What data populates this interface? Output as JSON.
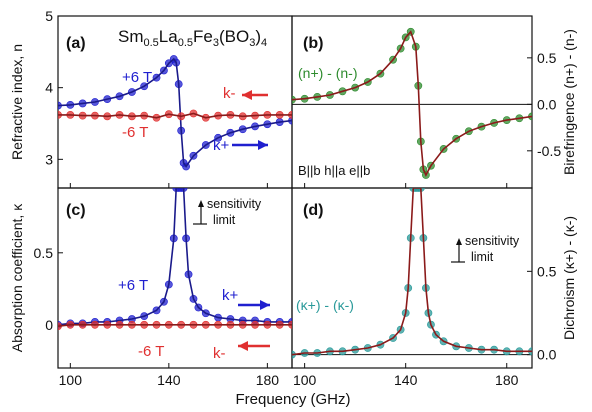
{
  "figure_title": "Sm0.5La0.5Fe3(BO3)4",
  "x_axis_label": "Frequency (GHz)",
  "chart_data": [
    {
      "panel": "(a)",
      "type": "line",
      "ylabel": "Refractive index, n",
      "xlim": [
        95,
        190
      ],
      "ylim": [
        2.6,
        5.0
      ],
      "xticks": [
        100,
        140,
        180
      ],
      "yticks": [
        3,
        4,
        5
      ],
      "annotations": {
        "plus_field": "+6 T",
        "minus_field": "-6 T",
        "k_plus": "k+",
        "k_minus": "k-"
      },
      "series": [
        {
          "name": "+6 T",
          "color": "#1f1fcf",
          "x": [
            95,
            100,
            105,
            110,
            115,
            120,
            125,
            130,
            135,
            138,
            140,
            142,
            143,
            144,
            145,
            146,
            147,
            150,
            155,
            160,
            165,
            170,
            175,
            180,
            185,
            190
          ],
          "y": [
            3.75,
            3.76,
            3.78,
            3.8,
            3.84,
            3.88,
            3.94,
            4.02,
            4.14,
            4.24,
            4.34,
            4.4,
            4.35,
            4.05,
            3.4,
            2.95,
            2.9,
            3.05,
            3.2,
            3.3,
            3.37,
            3.42,
            3.46,
            3.49,
            3.52,
            3.54
          ]
        },
        {
          "name": "-6 T",
          "color": "#e03030",
          "x": [
            95,
            100,
            105,
            110,
            115,
            120,
            125,
            130,
            135,
            140,
            145,
            150,
            155,
            160,
            165,
            170,
            175,
            180,
            185,
            190
          ],
          "y": [
            3.62,
            3.62,
            3.61,
            3.61,
            3.6,
            3.62,
            3.6,
            3.61,
            3.58,
            3.63,
            3.6,
            3.64,
            3.58,
            3.61,
            3.62,
            3.6,
            3.61,
            3.62,
            3.62,
            3.62
          ]
        }
      ]
    },
    {
      "panel": "(b)",
      "type": "line",
      "ylabel": "Birefringence (n+) - (n-)",
      "xlim": [
        95,
        190
      ],
      "ylim": [
        -0.9,
        0.95
      ],
      "xticks": [
        100,
        140,
        180
      ],
      "yticks": [
        -0.5,
        0.0,
        0.5
      ],
      "annotations": {
        "series_label": "(n+) - (n-)",
        "geometry": "B||b  h||a  e||b"
      },
      "series": [
        {
          "name": "(n+) - (n-)",
          "color": "#2e8b2e",
          "x": [
            95,
            100,
            105,
            110,
            115,
            120,
            125,
            130,
            135,
            138,
            140,
            142,
            144,
            145,
            146,
            147,
            148,
            150,
            155,
            160,
            165,
            170,
            175,
            180,
            185,
            190
          ],
          "y": [
            0.05,
            0.06,
            0.08,
            0.1,
            0.14,
            0.18,
            0.24,
            0.33,
            0.48,
            0.6,
            0.72,
            0.78,
            0.62,
            0.2,
            -0.4,
            -0.7,
            -0.76,
            -0.66,
            -0.48,
            -0.37,
            -0.29,
            -0.24,
            -0.2,
            -0.17,
            -0.15,
            -0.13
          ]
        }
      ]
    },
    {
      "panel": "(c)",
      "type": "line",
      "ylabel": "Absorption coefficient, κ",
      "xlim": [
        95,
        190
      ],
      "ylim": [
        -0.3,
        0.95
      ],
      "xticks": [
        100,
        140,
        180
      ],
      "yticks": [
        0.0,
        0.5
      ],
      "annotations": {
        "plus_field": "+6 T",
        "minus_field": "-6 T",
        "k_plus": "k+",
        "k_minus": "k-",
        "sensitivity": "sensitivity limit"
      },
      "series": [
        {
          "name": "+6 T",
          "color": "#1f1fcf",
          "x": [
            95,
            100,
            105,
            110,
            115,
            120,
            125,
            130,
            135,
            138,
            140,
            142,
            143,
            144,
            145,
            146,
            147,
            148,
            150,
            152,
            155,
            160,
            165,
            170,
            175,
            180,
            185,
            190
          ],
          "y": [
            0.0,
            0.01,
            0.01,
            0.02,
            0.02,
            0.03,
            0.04,
            0.06,
            0.1,
            0.16,
            0.28,
            0.6,
            0.95,
            0.95,
            0.95,
            0.95,
            0.6,
            0.35,
            0.18,
            0.12,
            0.08,
            0.05,
            0.04,
            0.03,
            0.03,
            0.02,
            0.02,
            0.02
          ]
        },
        {
          "name": "-6 T",
          "color": "#e03030",
          "x": [
            95,
            100,
            105,
            110,
            115,
            120,
            125,
            130,
            135,
            140,
            145,
            150,
            155,
            160,
            165,
            170,
            175,
            180,
            185,
            190
          ],
          "y": [
            -0.01,
            0.0,
            0.0,
            0.0,
            0.0,
            0.0,
            0.0,
            0.0,
            0.0,
            0.0,
            0.0,
            0.0,
            0.0,
            0.0,
            0.0,
            0.0,
            0.0,
            0.0,
            0.0,
            0.0
          ]
        }
      ]
    },
    {
      "panel": "(d)",
      "type": "line",
      "ylabel": "Dichroism (κ+) - (κ-)",
      "xlim": [
        95,
        190
      ],
      "ylim": [
        -0.08,
        1.0
      ],
      "xticks": [
        100,
        140,
        180
      ],
      "yticks": [
        0.0,
        0.5
      ],
      "annotations": {
        "series_label": "(κ+) - (κ-)",
        "sensitivity": "sensitivity limit"
      },
      "series": [
        {
          "name": "(κ+) - (κ-)",
          "color": "#2a9a9a",
          "x": [
            95,
            100,
            105,
            110,
            115,
            120,
            125,
            130,
            135,
            138,
            140,
            141,
            142,
            143,
            144,
            145,
            146,
            147,
            148,
            149,
            150,
            152,
            155,
            160,
            165,
            170,
            175,
            180,
            185,
            190
          ],
          "y": [
            0.0,
            0.01,
            0.01,
            0.02,
            0.02,
            0.03,
            0.04,
            0.06,
            0.1,
            0.15,
            0.25,
            0.4,
            0.7,
            1.0,
            1.0,
            1.0,
            1.0,
            0.7,
            0.4,
            0.25,
            0.18,
            0.12,
            0.08,
            0.05,
            0.04,
            0.03,
            0.03,
            0.02,
            0.02,
            0.02
          ]
        }
      ]
    }
  ]
}
